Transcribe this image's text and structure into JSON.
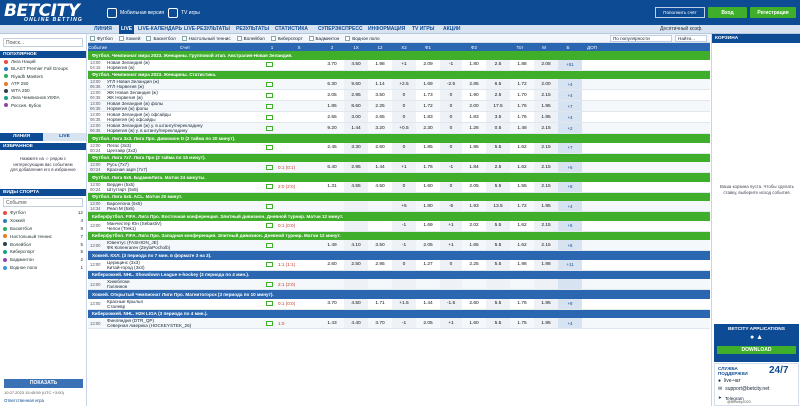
{
  "header": {
    "logo": "BETCITY",
    "logo_sub": "ONLINE BETTING",
    "mobile": "Мобильная версия",
    "tv": "TV игры",
    "topup": "Пополнить счёт",
    "login": "Вход",
    "register": "Регистрация"
  },
  "nav": {
    "items": [
      "ЛИНИЯ",
      "LIVE",
      "LIVE-КАЛЕНДАРЬ",
      "LIVE-РЕЗУЛЬТАТЫ",
      "РЕЗУЛЬТАТЫ",
      "СТАТИСТИКА",
      "СУПЕРЭКСПРЕСС",
      "ИНФОРМАЦИЯ",
      "TV ИГРЫ",
      "АКЦИИ"
    ],
    "right": "Десятичный коэф."
  },
  "sidebar": {
    "search_placeholder": "Поиск...",
    "popular_title": "ПОПУЛЯРНОЕ",
    "popular": [
      "Лига Наций",
      "BLAST Premier Fall Groups",
      "Riyadh Masters",
      "ATP 250",
      "WTA 250",
      "Лига Чемпионов УЕФА",
      "Россия. Кубок"
    ],
    "tabs": [
      "ЛИНИЯ",
      "LIVE"
    ],
    "fav_title": "ИЗБРАННОЕ",
    "fav_text": "Нажмите на ☆ рядом с интересующим вас событием для добавления его в избранное",
    "sports_title": "ВИДЫ СПОРТА",
    "sports_filter": "События",
    "sports": [
      {
        "name": "Футбол",
        "count": "12"
      },
      {
        "name": "Хоккей",
        "count": "4"
      },
      {
        "name": "Баскетбол",
        "count": "9"
      },
      {
        "name": "Настольный теннис",
        "count": "7"
      },
      {
        "name": "Волейбол",
        "count": "5"
      },
      {
        "name": "Киберспорт",
        "count": "5"
      },
      {
        "name": "Бадминтон",
        "count": "2"
      },
      {
        "name": "Водное поло",
        "count": "1"
      }
    ],
    "show_button": "ПОКАЗАТЬ",
    "timestamp": "10.07.2023 15:45:59 (UTC +3:00)",
    "bottom_link": "Ответственная игра"
  },
  "filters": [
    "Футбол",
    "Хоккей",
    "Баскетбол",
    "Настольный теннис",
    "Волейбол",
    "Киберспорт",
    "Бадминтон",
    "Водное поло"
  ],
  "sort": "По популярности",
  "search2": "Найти...",
  "columns": [
    "Событие",
    "Счет",
    "1",
    "X",
    "2",
    "1X",
    "12",
    "X2",
    "Ф1",
    "",
    "Ф2",
    "",
    "Тот",
    "М",
    "Б",
    "ДОП"
  ],
  "events": [
    {
      "cat": "Футбол. Чемпионат мира 2023. Женщины. Групповой этап. Австралия-Новая Зеландия.",
      "type": "green"
    },
    {
      "time": "13:00",
      "time2": "04:15",
      "t1": "Новая Зеландия (ж)",
      "t2": "Норвегия (ж)",
      "score": "",
      "odds": [
        "3.70",
        "4.50",
        "1.98",
        "+1",
        "2.09",
        "-1",
        "1.80",
        "2.5",
        "1.88",
        "2.08",
        "+51"
      ]
    },
    {
      "cat": "Футбол. Чемпионат мира 2023. Женщины. Статистика.",
      "type": "green"
    },
    {
      "time": "13:00",
      "time2": "06:35",
      "t1": "УГЛ Новая Зеландия (ж)",
      "t2": "УГЛ Норвегия (ж)",
      "score": "",
      "odds": [
        "6.30",
        "9.60",
        "1.14",
        "+2.5",
        "1.69",
        "-2.5",
        "2.85",
        "6.5",
        "1.72",
        "2.00",
        "+4"
      ]
    },
    {
      "time": "13:00",
      "time2": "06:35",
      "t1": "ЖК Новая Зеландия (ж)",
      "t2": "ЖК Норвегия (ж)",
      "score": "",
      "odds": [
        "2.05",
        "2.95",
        "3.50",
        "0",
        "1.73",
        "0",
        "1.90",
        "2.5",
        "1.70",
        "2.15",
        "+4"
      ]
    },
    {
      "time": "13:00",
      "time2": "06:35",
      "t1": "Новая Зеландия (ж) фолы",
      "t2": "Норвегия (ж) фолы",
      "score": "",
      "odds": [
        "1.85",
        "8.60",
        "2.25",
        "0",
        "1.72",
        "0",
        "2.00",
        "17.5",
        "1.76",
        "1.95",
        "+7"
      ]
    },
    {
      "time": "13:00",
      "time2": "06:35",
      "t1": "Новая Зеландия (ж) офсайды",
      "t2": "Норвегия (ж) офсайды",
      "score": "",
      "odds": [
        "2.55",
        "3.00",
        "2.65",
        "0",
        "1.83",
        "0",
        "1.83",
        "3.5",
        "1.76",
        "1.95",
        "+4"
      ]
    },
    {
      "time": "13:00",
      "time2": "06:35",
      "t1": "Новая Зеландия (ж) у. в штангу/перекладину",
      "t2": "Норвегия (ж) у. в штангу/перекладину",
      "score": "",
      "odds": [
        "9.20",
        "1.44",
        "3.20",
        "+0.5",
        "2.30",
        "0",
        "1.26",
        "0.5",
        "1.48",
        "2.15",
        "+2"
      ]
    },
    {
      "cat": "Футбол. Лига 3x3. Лига Про. Дивизион D (2 тайма по 20 минут).",
      "type": "green"
    },
    {
      "time": "13:00",
      "time2": "00:24",
      "t1": "Пегас (3x3)",
      "t2": "Центавр (3x3)",
      "score": "",
      "odds": [
        "2.45",
        "3.30",
        "2.60",
        "0",
        "1.85",
        "0",
        "1.95",
        "5.5",
        "1.62",
        "2.15",
        "+7"
      ]
    },
    {
      "cat": "Футбол. Лига 7x7. Лига Про (2 тайма по 15 минут).",
      "type": "green"
    },
    {
      "time": "13:00",
      "time2": "00:24",
      "t1": "Русь (7x7)",
      "t2": "Красная заря (7x7)",
      "score": "0:1 (0:1)",
      "odds": [
        "6.40",
        "2.95",
        "1.44",
        "+1",
        "1.76",
        "-1",
        "1.84",
        "2.5",
        "1.62",
        "2.15",
        "+6"
      ]
    },
    {
      "cat": "Футбол. Лига 5x5. БадминЛига. Матчи 24 минуты.",
      "type": "green"
    },
    {
      "time": "13:00",
      "time2": "00:24",
      "t1": "Верден (5x5)",
      "t2": "Штутгарт (5x5)",
      "score": "2:0 (2:0)",
      "odds": [
        "1.31",
        "4.55",
        "4.50",
        "0",
        "1.60",
        "0",
        "2.05",
        "5.5",
        "1.55",
        "2.15",
        "+8"
      ]
    },
    {
      "cat": "Футбол. Лига 5x5. ACL. Матчи 20 минут.",
      "type": "green"
    },
    {
      "time": "13:00",
      "time2": "14:34",
      "t1": "Барселона (5x5)",
      "t2": "Реал М (5x5)",
      "score": "",
      "odds": [
        "",
        "",
        "",
        "+5",
        "1.80",
        "-5",
        "1.93",
        "13.5",
        "1.72",
        "1.95",
        "+4"
      ]
    },
    {
      "cat": "Киберфутбол. FIFA. Лига Про. Восточная конференция. Элитный дивизион. Дневной турнир. Матчи 12 минут.",
      "type": "green"
    },
    {
      "time": "13:00",
      "time2": "",
      "t1": "Манчестер Юн (SebastiV)",
      "t2": "Челси (Trek1)",
      "score": "0:1 (0:0)",
      "odds": [
        "",
        "",
        "",
        "-1",
        "1.69",
        "+1",
        "2.02",
        "5.5",
        "1.62",
        "2.15",
        "+6"
      ]
    },
    {
      "cat": "Киберфутбол. FIFA. Лига Про. Западная конференция. Элитный дивизион. Дневной турнир. Матчи 12 минут.",
      "type": "green"
    },
    {
      "time": "13:00",
      "time2": "",
      "t1": "Ювентус (FASHION_JE)",
      "t2": "ФК Копенгаген (ZeylaPocholb)",
      "score": "",
      "odds": [
        "1.49",
        "4.10",
        "3.50",
        "-1",
        "2.05",
        "+1",
        "1.65",
        "5.5",
        "1.62",
        "2.15",
        "+6"
      ]
    },
    {
      "cat": "Хоккей. КХЛ. (3 периода по 7 мин. в формате 3 на 3).",
      "type": "blue"
    },
    {
      "time": "13:00",
      "time2": "",
      "t1": "Церицинс (3x3)",
      "t2": "Китай-город (3x3)",
      "score": "1:1 (1:1)",
      "odds": [
        "2.60",
        "2.50",
        "2.95",
        "0",
        "1.27",
        "0",
        "2.25",
        "5.5",
        "1.98",
        "1.98",
        "+11"
      ]
    },
    {
      "cat": "Киберхоккей. NHL. Showdown League e-hockey (3 периода по 4 мин.).",
      "type": "blue"
    },
    {
      "time": "13:00",
      "time2": "",
      "t1": "Хинкблоки",
      "t2": "Галлинон",
      "score": "2:1 (2:0)",
      "odds": [
        "",
        "",
        "",
        "",
        "",
        "",
        "",
        "",
        "",
        "",
        ""
      ]
    },
    {
      "cat": "Хоккей. Открытый Чемпионат Лиги Про. Магнитогорск (3 периода по 10 минут).",
      "type": "blue"
    },
    {
      "time": "13:00",
      "time2": "",
      "t1": "Красные Крылья",
      "t2": "Сталевр",
      "score": "0:1 (0:0)",
      "odds": [
        "3.70",
        "4.50",
        "1.71",
        "+1.5",
        "1.44",
        "-1.5",
        "2.60",
        "5.5",
        "1.76",
        "1.95",
        "+8"
      ]
    },
    {
      "cat": "Киберхоккей. NHL. H2H LIGA (3 периода по 4 мин.).",
      "type": "blue"
    },
    {
      "time": "13:00",
      "time2": "",
      "t1": "Финляндия (DTR_QP)",
      "t2": "Северная Америка (HOCKEYSTEK_26)",
      "score": "1:0",
      "odds": [
        "1.43",
        "4.40",
        "3.70",
        "-1",
        "2.05",
        "+1",
        "1.60",
        "5.5",
        "1.75",
        "1.95",
        "+4"
      ]
    }
  ],
  "right": {
    "cart_title": "КОРЗИНА",
    "cart_empty": "Ваша корзина пуста. Чтобы сделать ставку, выберите исход события.",
    "apps_title": "BETCITY APPLICATIONS",
    "apps_download": "DOWNLOAD",
    "support_title": "СЛУЖБА ПОДДЕРЖКИ",
    "support_hours": "24/7",
    "live_chat": "live-чат",
    "email": "support@betcity.net",
    "telegram": "Telegram",
    "telegram_handle": "@Betcity2020"
  }
}
